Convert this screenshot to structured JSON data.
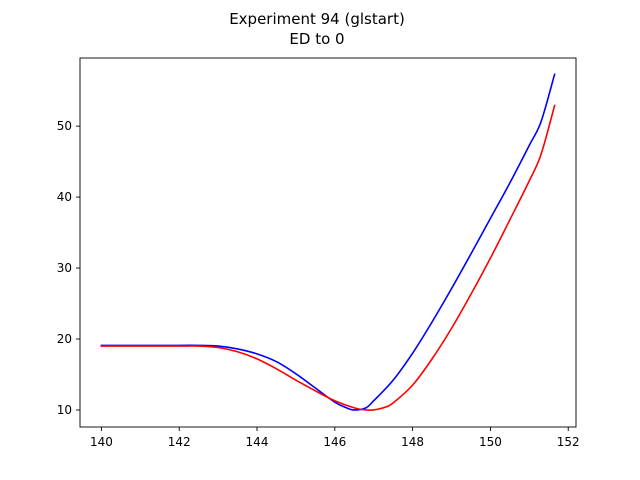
{
  "chart_data": {
    "type": "line",
    "title": "Experiment 94 (glstart)",
    "subtitle": "ED to 0",
    "xlabel": "",
    "ylabel": "",
    "xlim": [
      139.45,
      152.2
    ],
    "ylim": [
      7.6,
      59.6
    ],
    "xticks": [
      140,
      142,
      144,
      146,
      148,
      150,
      152
    ],
    "yticks": [
      10,
      20,
      30,
      40,
      50
    ],
    "grid": false,
    "series": [
      {
        "color": "#0000ff",
        "x": [
          140,
          141,
          142,
          142.5,
          143,
          143.5,
          144,
          144.5,
          145,
          145.5,
          146,
          146.3,
          146.5,
          146.8,
          147,
          147.5,
          148,
          148.5,
          149,
          149.5,
          150,
          150.5,
          151,
          151.3,
          151.65
        ],
        "y": [
          19.1,
          19.1,
          19.1,
          19.1,
          19.0,
          18.6,
          17.9,
          16.8,
          15.1,
          13.1,
          11.1,
          10.3,
          10.0,
          10.3,
          11.3,
          14.2,
          18.0,
          22.4,
          27.1,
          32.0,
          37.0,
          42.0,
          47.3,
          50.6,
          57.3
        ]
      },
      {
        "color": "#ff0000",
        "x": [
          140,
          141,
          142,
          142.5,
          143,
          143.5,
          144,
          144.5,
          145,
          145.5,
          146,
          146.5,
          146.8,
          147,
          147.3,
          147.5,
          148,
          148.5,
          149,
          149.5,
          150,
          150.5,
          151,
          151.3,
          151.65
        ],
        "y": [
          19.0,
          19.0,
          19.0,
          19.0,
          18.8,
          18.2,
          17.2,
          15.8,
          14.2,
          12.7,
          11.3,
          10.3,
          10.0,
          10.0,
          10.4,
          11.0,
          13.5,
          17.2,
          21.5,
          26.3,
          31.4,
          36.8,
          42.3,
          46.0,
          52.9
        ]
      }
    ]
  }
}
